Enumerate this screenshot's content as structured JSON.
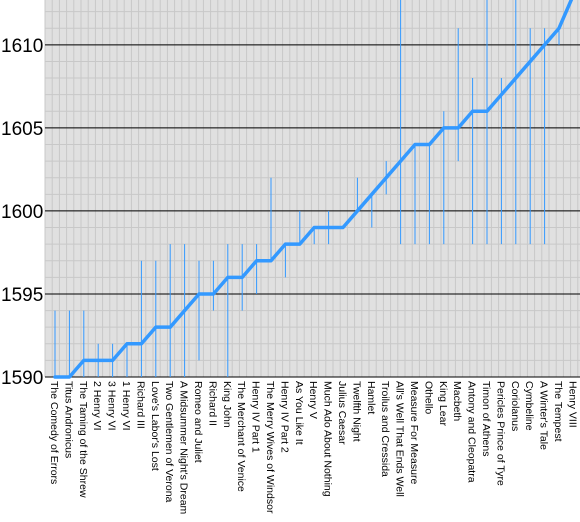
{
  "chart_data": {
    "type": "line",
    "title": "",
    "xlabel": "",
    "ylabel": "",
    "ylim": [
      1590,
      1612.7
    ],
    "yticks": [
      1590,
      1595,
      1600,
      1605,
      1610
    ],
    "grid": true,
    "colors": {
      "line": "#3399ff",
      "plot_bg": "#e0e0e0",
      "minor_grid": "#c8c8c8",
      "major_grid": "#000000"
    },
    "categories": [
      "The Comedy of Errors",
      "Titus Andronicus",
      "The Taming of the Shrew",
      "2 Henry VI",
      "3 Henry VI",
      "1 Henry VI",
      "Richard III",
      "Love's Labor's Lost",
      "Two Gentlemen of Verona",
      "A Midsummer Night's Dream",
      "Romeo and Juliet",
      "Richard II",
      "King John",
      "The Merchant of Venice",
      "Henry IV Part 1",
      "The Merry Wives of Windsor",
      "Henry IV Part 2",
      "As You Like It",
      "Henry V",
      "Much Ado About Nothing",
      "Julius Caesar",
      "Twelfth Night",
      "Hamlet",
      "Troilus and Cressida",
      "All's Well That Ends Well",
      "Measure For Measure",
      "Othello",
      "King Lear",
      "Macbeth",
      "Antony and Cleopatra",
      "Timon of Athens",
      "Pericles Prince of Tyre",
      "Coriolanus",
      "Cymbeline",
      "A Winter's Tale",
      "The Tempest",
      "Henry VIII"
    ],
    "values": [
      1590,
      1590,
      1591,
      1591,
      1591,
      1592,
      1592,
      1593,
      1593,
      1594,
      1595,
      1595,
      1596,
      1596,
      1597,
      1597,
      1598,
      1598,
      1599,
      1599,
      1599,
      1600,
      1601,
      1602,
      1603,
      1604,
      1604,
      1605,
      1605,
      1606,
      1606,
      1607,
      1608,
      1609,
      1610,
      1611,
      1613
    ],
    "ranges": [
      [
        1590,
        1594
      ],
      [
        1590,
        1594
      ],
      [
        1590,
        1594
      ],
      [
        1590,
        1592
      ],
      [
        1590,
        1592
      ],
      [
        1590,
        1592
      ],
      [
        1590,
        1597
      ],
      [
        1590,
        1597
      ],
      [
        1590,
        1598
      ],
      [
        1590,
        1598
      ],
      [
        1591,
        1597
      ],
      [
        1594,
        1597
      ],
      [
        1590,
        1598
      ],
      [
        1594,
        1598
      ],
      [
        1595,
        1598
      ],
      [
        1597,
        1602
      ],
      [
        1596,
        1598
      ],
      [
        1598,
        1600
      ],
      [
        1598,
        1599
      ],
      [
        1598,
        1600
      ],
      [
        1599,
        1599
      ],
      [
        1600,
        1602
      ],
      [
        1599,
        1601
      ],
      [
        1601,
        1603
      ],
      [
        1598,
        1613
      ],
      [
        1598,
        1604
      ],
      [
        1598,
        1604
      ],
      [
        1598,
        1606
      ],
      [
        1603,
        1611
      ],
      [
        1598,
        1608
      ],
      [
        1598,
        1613
      ],
      [
        1598,
        1608
      ],
      [
        1598,
        1613
      ],
      [
        1598,
        1611
      ],
      [
        1598,
        1611
      ],
      [
        1610,
        1611
      ],
      [
        1613,
        1613
      ]
    ]
  }
}
